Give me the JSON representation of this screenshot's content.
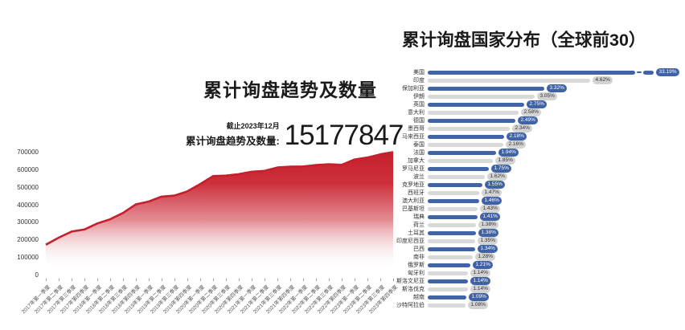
{
  "page": {
    "background": "#ffffff"
  },
  "left_chart": {
    "title": "累计询盘趋势及数量",
    "asof": "截止2023年12月",
    "stat_label": "累计询盘趋势及数量:",
    "stat_value": "15177847",
    "line_color": "#c5202d",
    "fill_color": "#cd2f3b"
  },
  "right_chart": {
    "title": "累计询盘国家分布（全球前30）",
    "blue": "#4264a4",
    "gray": "#d9d9d9"
  },
  "chart_data": [
    {
      "type": "area",
      "title": "累计询盘趋势及数量",
      "xlabel": "",
      "ylabel": "",
      "ylim": [
        0,
        700000
      ],
      "y_ticks": [
        700000,
        600000,
        500000,
        400000,
        300000,
        200000,
        100000,
        0
      ],
      "grid": false,
      "legend": "none",
      "x": [
        "2017年第一季度",
        "2017年第二季度",
        "2017年第三季度",
        "2017年第四季度",
        "2018年第一季度",
        "2018年第二季度",
        "2018年第三季度",
        "2018年第四季度",
        "2019年第一季度",
        "2019年第二季度",
        "2019年第三季度",
        "2019年第四季度",
        "2020年第一季度",
        "2020年第二季度",
        "2020年第三季度",
        "2020年第四季度",
        "2021年第一季度",
        "2021年第二季度",
        "2021年第三季度",
        "2021年第四季度",
        "2022年第一季度",
        "2022年第二季度",
        "2022年第三季度",
        "2022年第四季度",
        "2023年第一季度",
        "2023年第二季度",
        "2023年第三季度",
        "2023年第四季度"
      ],
      "values": [
        175000,
        215000,
        250000,
        262000,
        296000,
        320000,
        356000,
        405000,
        421000,
        449000,
        455000,
        479000,
        521000,
        566000,
        569000,
        577000,
        591000,
        596000,
        615000,
        620000,
        621000,
        629000,
        634000,
        630000,
        661000,
        672000,
        690000,
        703000
      ]
    },
    {
      "type": "bar",
      "orientation": "horizontal",
      "title": "累计询盘国家分布（全球前30）",
      "legend": "none",
      "axis_break_row": 0,
      "categories": [
        "美国",
        "印度",
        "保加利亚",
        "伊朗",
        "英国",
        "意大利",
        "德国",
        "墨西哥",
        "马来西亚",
        "泰国",
        "法国",
        "加拿大",
        "罗马尼亚",
        "波兰",
        "克罗地亚",
        "西班牙",
        "澳大利亚",
        "巴基斯坦",
        "瑞典",
        "荷兰",
        "土耳其",
        "印度尼西亚",
        "巴西",
        "南非",
        "俄罗斯",
        "匈牙利",
        "斯洛文尼亚",
        "斯洛伐克",
        "越南",
        "沙特阿拉伯"
      ],
      "values": [
        33.19,
        4.62,
        3.32,
        3.05,
        2.75,
        2.58,
        2.49,
        2.34,
        2.18,
        2.16,
        1.94,
        1.85,
        1.75,
        1.62,
        1.55,
        1.47,
        1.46,
        1.43,
        1.41,
        1.38,
        1.38,
        1.35,
        1.34,
        1.28,
        1.21,
        1.14,
        1.14,
        1.14,
        1.09,
        1.08
      ],
      "value_labels": [
        "33.19%",
        "4.62%",
        "3.32%",
        "3.05%",
        "2.75%",
        "2.58%",
        "2.49%",
        "2.34%",
        "2.18%",
        "2.16%",
        "1.94%",
        "1.85%",
        "1.75%",
        "1.62%",
        "1.55%",
        "1.47%",
        "1.46%",
        "1.43%",
        "1.41%",
        "1.38%",
        "1.38%",
        "1.35%",
        "1.34%",
        "1.28%",
        "1.21%",
        "1.14%",
        "1.14%",
        "1.14%",
        "1.09%",
        "1.08%"
      ],
      "bar_colors": [
        "blue",
        "gray",
        "blue",
        "gray",
        "blue",
        "gray",
        "blue",
        "gray",
        "blue",
        "gray",
        "blue",
        "gray",
        "blue",
        "gray",
        "blue",
        "gray",
        "blue",
        "gray",
        "blue",
        "gray",
        "blue",
        "gray",
        "blue",
        "gray",
        "blue",
        "gray",
        "blue",
        "gray",
        "blue",
        "gray"
      ]
    }
  ]
}
